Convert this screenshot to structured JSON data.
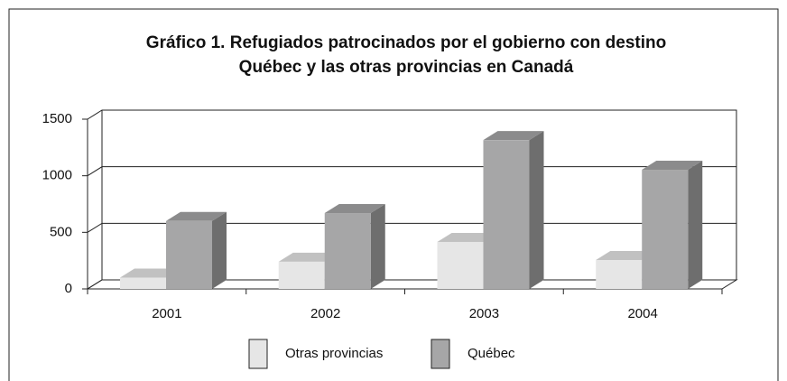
{
  "chart_data": {
    "type": "bar3d",
    "title": [
      "Gráfico 1. Refugiados patrocinados por el gobierno con destino",
      "Québec y las otras provincias en Canadá"
    ],
    "categories": [
      "2001",
      "2002",
      "2003",
      "2004"
    ],
    "series": [
      {
        "name": "Otras provincias",
        "color": "#e6e6e6",
        "values": [
          100,
          240,
          415,
          255
        ]
      },
      {
        "name": "Québec",
        "color": "#a6a6a7",
        "values": [
          600,
          670,
          1315,
          1053
        ]
      }
    ],
    "ylim": [
      0,
      1500
    ],
    "yticks": [
      0,
      500,
      1000,
      1500
    ],
    "grid": true,
    "legend": "bottom"
  }
}
